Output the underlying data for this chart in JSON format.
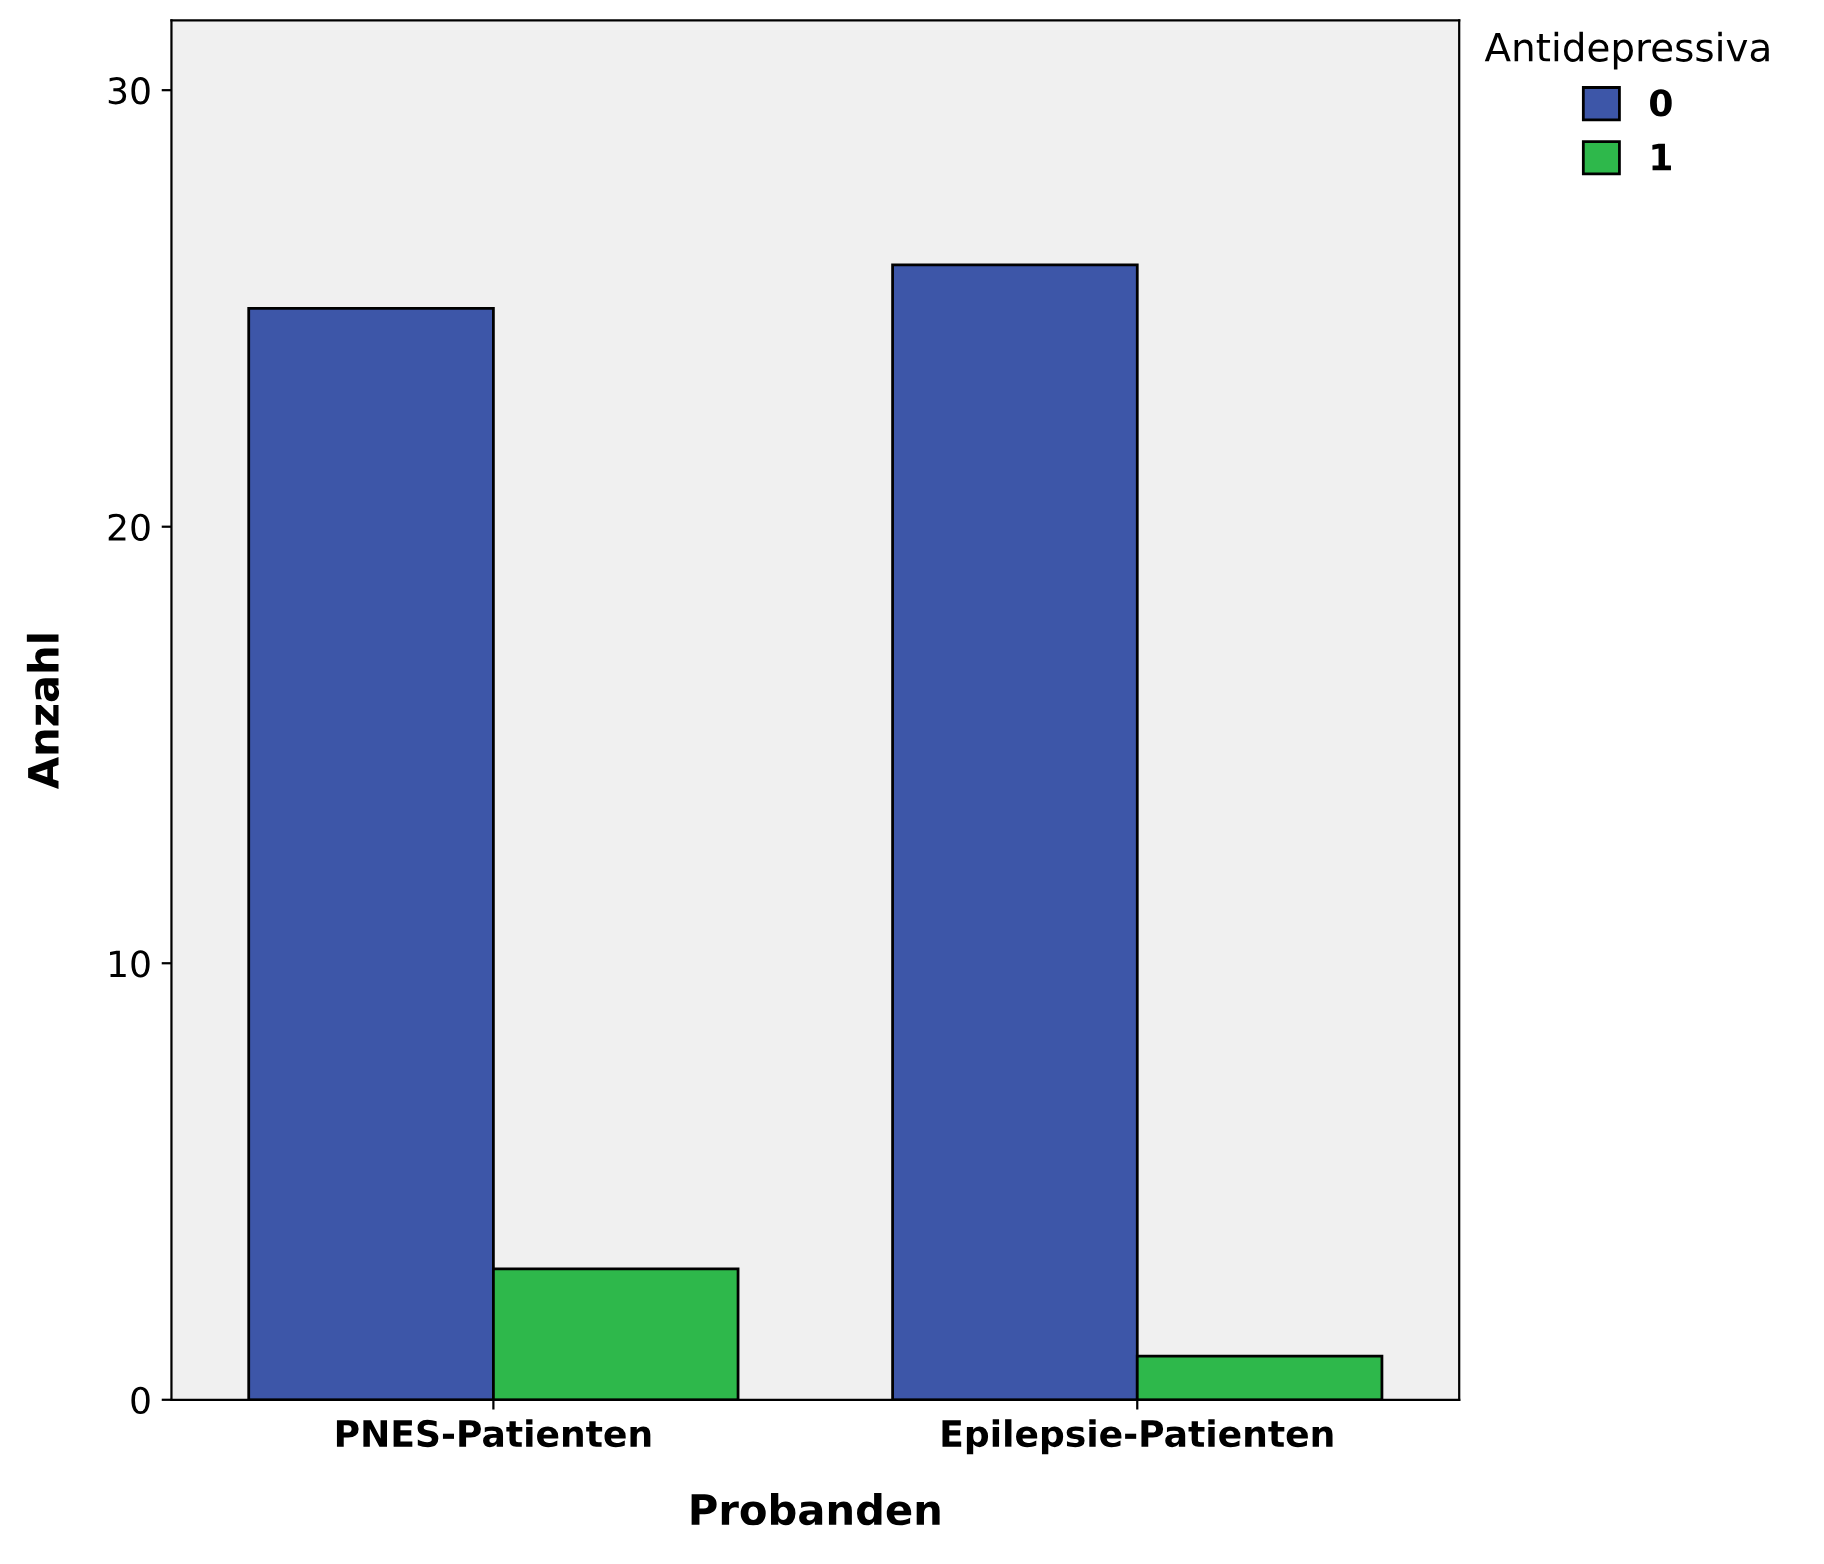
{
  "chart_data": {
    "type": "bar",
    "xlabel": "Probanden",
    "ylabel": "Anzahl",
    "legend_title": "Antidepressiva",
    "categories": [
      "PNES-Patienten",
      "Epilepsie-Patienten"
    ],
    "series": [
      {
        "name": "0",
        "color": "#3d56a8",
        "values": [
          25,
          26
        ]
      },
      {
        "name": "1",
        "color": "#2eb84b",
        "values": [
          3,
          1
        ]
      }
    ],
    "ylim": [
      0,
      31.6
    ],
    "yticks": [
      0,
      10,
      20,
      30
    ],
    "grid": false,
    "legend": "top right"
  }
}
